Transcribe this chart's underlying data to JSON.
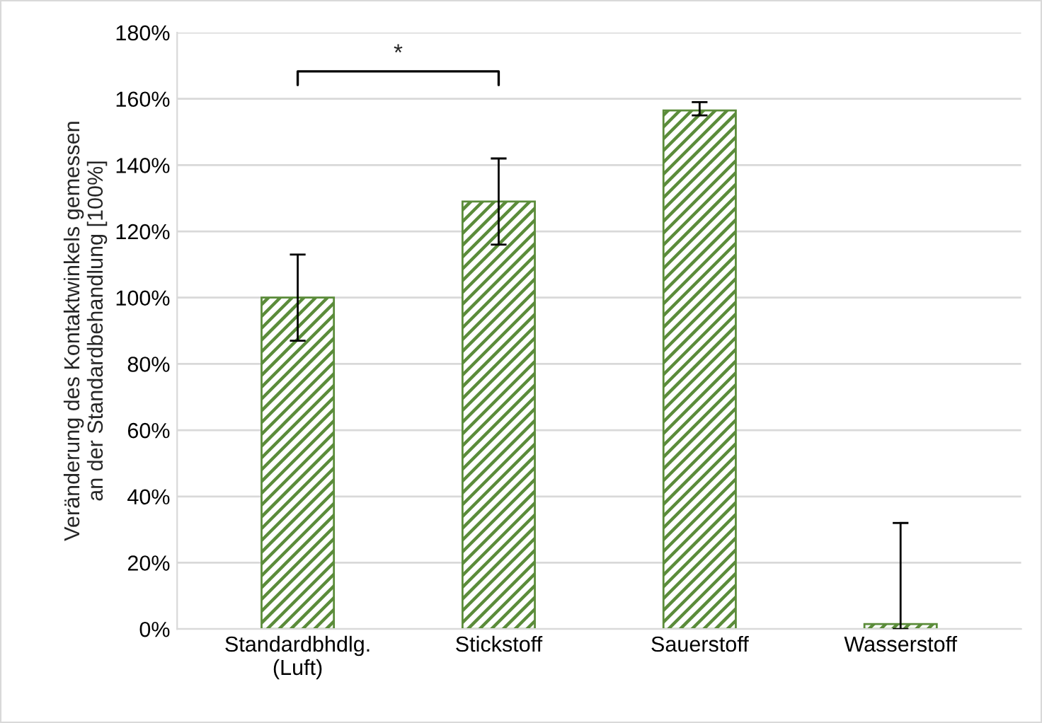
{
  "chart_data": {
    "type": "bar",
    "ylabel": "Veränderung des Kontaktwinkels gemessen\nan der Standardbehandlung [100%]",
    "categories": [
      "Standardbhdlg.\n(Luft)",
      "Stickstoff",
      "Sauerstoff",
      "Wasserstoff"
    ],
    "values": [
      100,
      129,
      156.5,
      1.5
    ],
    "errors": [
      13,
      13,
      [
        155,
        159
      ],
      [
        0,
        32
      ]
    ],
    "color": "#5b8c3a",
    "ylim": [
      0,
      180
    ],
    "yticks": [
      {
        "value": 0,
        "label": "0%"
      },
      {
        "value": 20,
        "label": "20%"
      },
      {
        "value": 40,
        "label": "40%"
      },
      {
        "value": 60,
        "label": "60%"
      },
      {
        "value": 80,
        "label": "80%"
      },
      {
        "value": 100,
        "label": "100%"
      },
      {
        "value": 120,
        "label": "120%"
      },
      {
        "value": 140,
        "label": "140%"
      },
      {
        "value": 160,
        "label": "160%"
      },
      {
        "value": 180,
        "label": "180%"
      }
    ],
    "grid": "y",
    "annotations": [
      "*"
    ]
  }
}
